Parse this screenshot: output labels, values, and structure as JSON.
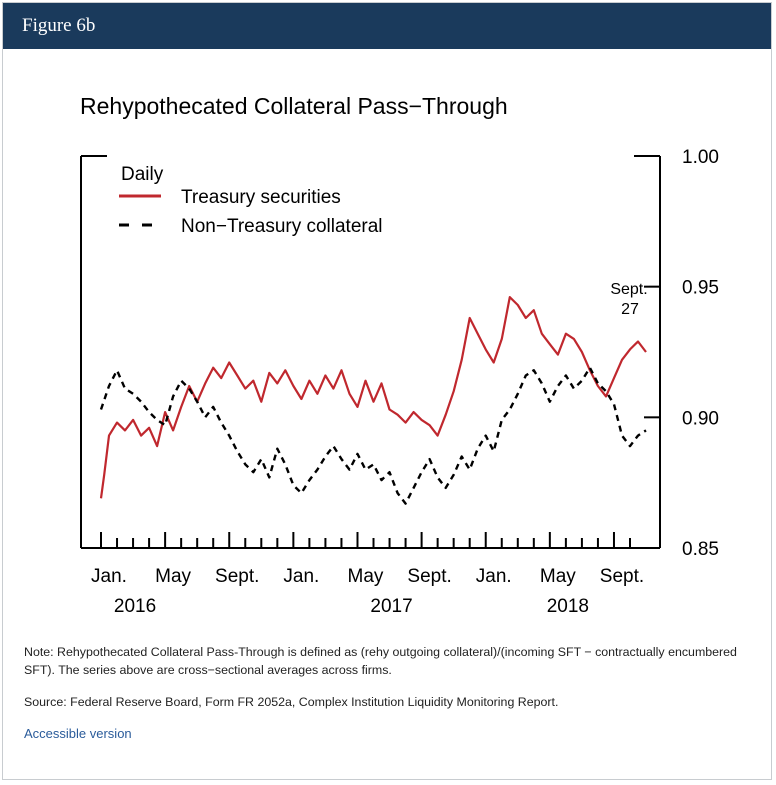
{
  "header": {
    "title": "Figure 6b"
  },
  "colors": {
    "header_bg": "#1a3a5c",
    "treasury": "#c0282e",
    "non_treasury": "#000000",
    "link": "#2a5b9a"
  },
  "chart_data": {
    "type": "line",
    "title": "Rehypothecated Collateral Pass−Through",
    "legend": {
      "heading": "Daily",
      "position": "top-left"
    },
    "y_axis": {
      "side": "right",
      "ylim": [
        0.85,
        1.0
      ],
      "ticks": [
        0.85,
        0.9,
        0.95,
        1.0
      ],
      "tick_labels": [
        "0.85",
        "0.90",
        "0.95",
        "1.00"
      ]
    },
    "x_axis": {
      "range": [
        "2016-01",
        "2018-09"
      ],
      "tick_labels": [
        "Jan.",
        "May",
        "Sept.",
        "Jan.",
        "May",
        "Sept.",
        "Jan.",
        "May",
        "Sept."
      ],
      "tick_label_months": [
        0,
        4,
        8,
        12,
        16,
        20,
        24,
        28,
        32
      ],
      "year_labels": [
        "2016",
        "2017",
        "2018"
      ],
      "year_label_months": [
        2,
        18,
        29
      ]
    },
    "annotation": {
      "text_line1": "Sept.",
      "text_line2": "27",
      "month_index": 32.9,
      "value": 0.95
    },
    "series": [
      {
        "name": "Treasury securities",
        "style": "solid",
        "x_months": [
          0.0,
          0.2,
          0.5,
          1.0,
          1.5,
          2.0,
          2.5,
          3.0,
          3.5,
          4.0,
          4.5,
          5.0,
          5.5,
          6.0,
          6.5,
          7.0,
          7.5,
          8.0,
          8.5,
          9.0,
          9.5,
          10.0,
          10.5,
          11.0,
          11.5,
          12.0,
          12.5,
          13.0,
          13.5,
          14.0,
          14.5,
          15.0,
          15.5,
          16.0,
          16.5,
          17.0,
          17.5,
          18.0,
          18.5,
          19.0,
          19.5,
          20.0,
          20.5,
          21.0,
          21.5,
          22.0,
          22.5,
          23.0,
          23.5,
          24.0,
          24.5,
          25.0,
          25.5,
          26.0,
          26.5,
          27.0,
          27.5,
          28.0,
          28.5,
          29.0,
          29.5,
          30.0,
          30.5,
          31.0,
          31.5,
          32.0,
          32.5,
          33.0,
          33.5,
          34.0
        ],
        "values": [
          0.869,
          0.878,
          0.893,
          0.898,
          0.895,
          0.899,
          0.893,
          0.896,
          0.889,
          0.902,
          0.895,
          0.904,
          0.912,
          0.906,
          0.913,
          0.919,
          0.915,
          0.921,
          0.916,
          0.911,
          0.914,
          0.906,
          0.917,
          0.913,
          0.918,
          0.912,
          0.907,
          0.914,
          0.909,
          0.916,
          0.911,
          0.918,
          0.909,
          0.904,
          0.914,
          0.906,
          0.913,
          0.903,
          0.901,
          0.898,
          0.902,
          0.899,
          0.897,
          0.893,
          0.901,
          0.91,
          0.922,
          0.938,
          0.932,
          0.926,
          0.921,
          0.93,
          0.946,
          0.943,
          0.938,
          0.941,
          0.932,
          0.928,
          0.924,
          0.932,
          0.93,
          0.925,
          0.918,
          0.912,
          0.908,
          0.915,
          0.922,
          0.926,
          0.929,
          0.925
        ]
      },
      {
        "name": "Non−Treasury collateral",
        "style": "dashed",
        "x_months": [
          0.0,
          0.5,
          1.0,
          1.5,
          2.0,
          2.5,
          3.0,
          3.5,
          4.0,
          4.5,
          5.0,
          5.5,
          6.0,
          6.5,
          7.0,
          7.5,
          8.0,
          8.5,
          9.0,
          9.5,
          10.0,
          10.5,
          11.0,
          11.5,
          12.0,
          12.5,
          13.0,
          13.5,
          14.0,
          14.5,
          15.0,
          15.5,
          16.0,
          16.5,
          17.0,
          17.5,
          18.0,
          18.5,
          19.0,
          19.5,
          20.0,
          20.5,
          21.0,
          21.5,
          22.0,
          22.5,
          23.0,
          23.5,
          24.0,
          24.5,
          25.0,
          25.5,
          26.0,
          26.5,
          27.0,
          27.5,
          28.0,
          28.5,
          29.0,
          29.5,
          30.0,
          30.5,
          31.0,
          31.5,
          32.0,
          32.5,
          33.0,
          33.5,
          34.0
        ],
        "values": [
          0.903,
          0.912,
          0.918,
          0.911,
          0.909,
          0.906,
          0.902,
          0.899,
          0.897,
          0.908,
          0.914,
          0.911,
          0.906,
          0.9,
          0.904,
          0.898,
          0.893,
          0.887,
          0.882,
          0.879,
          0.884,
          0.877,
          0.888,
          0.882,
          0.874,
          0.871,
          0.876,
          0.88,
          0.885,
          0.889,
          0.884,
          0.88,
          0.886,
          0.88,
          0.882,
          0.876,
          0.879,
          0.871,
          0.867,
          0.873,
          0.879,
          0.884,
          0.877,
          0.873,
          0.878,
          0.885,
          0.88,
          0.888,
          0.893,
          0.887,
          0.899,
          0.903,
          0.909,
          0.916,
          0.918,
          0.913,
          0.906,
          0.912,
          0.916,
          0.911,
          0.914,
          0.919,
          0.913,
          0.91,
          0.905,
          0.893,
          0.889,
          0.893,
          0.895
        ]
      }
    ]
  },
  "notes": {
    "note": "Note: Rehypothecated Collateral Pass-Through is defined as (rehy outgoing collateral)/(incoming SFT − contractually encumbered SFT). The series above are cross−sectional averages across firms.",
    "source": "Source: Federal Reserve Board, Form FR 2052a, Complex Institution Liquidity Monitoring Report."
  },
  "links": {
    "accessible": "Accessible version"
  }
}
